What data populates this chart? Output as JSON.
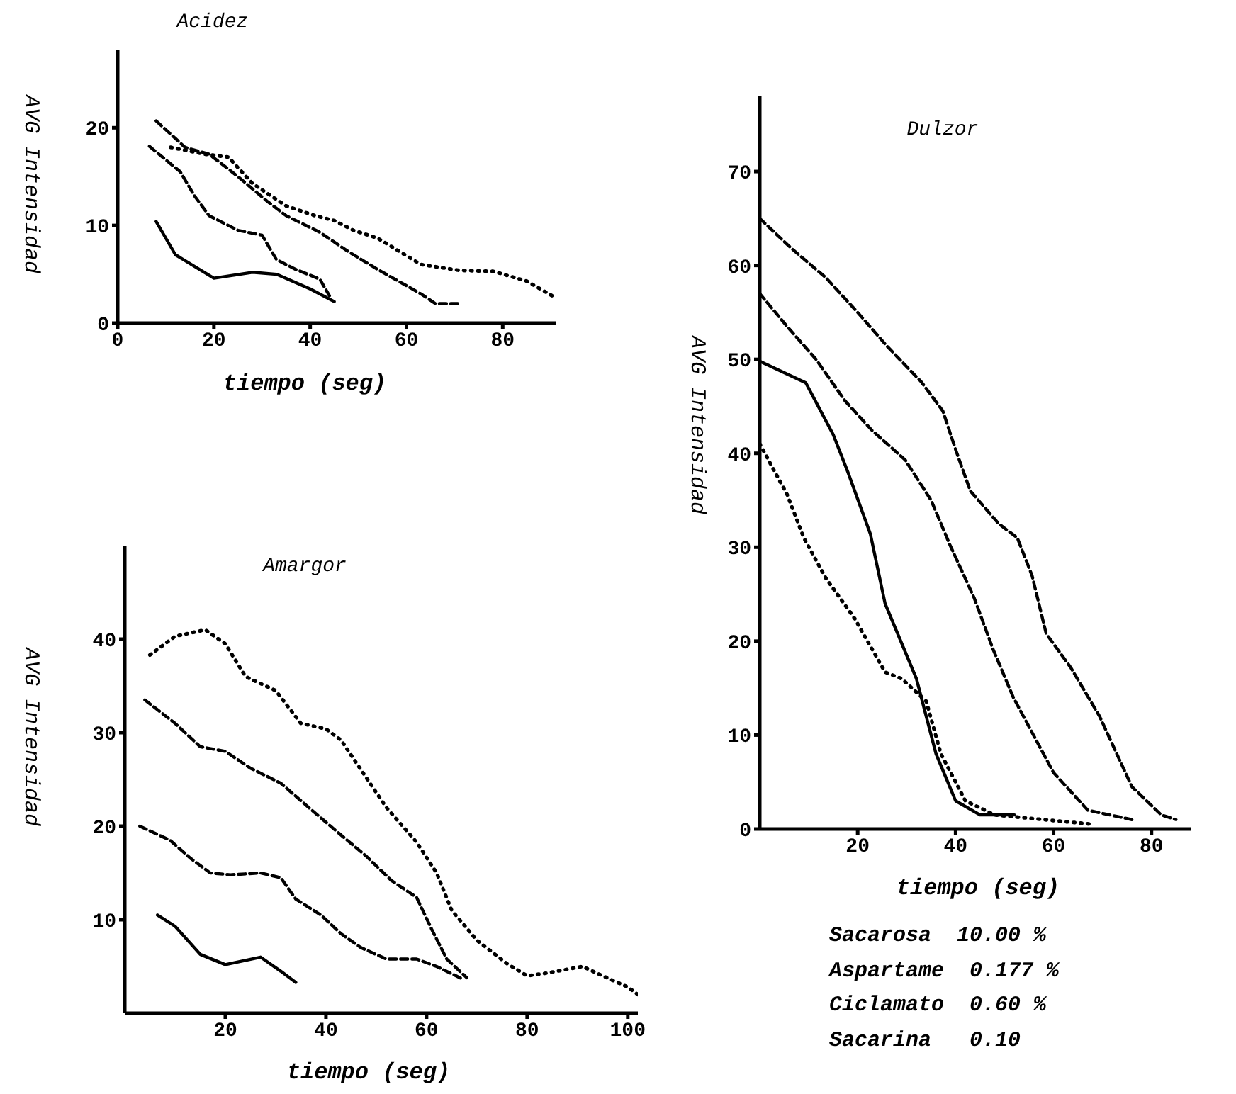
{
  "chart_data": [
    {
      "type": "line",
      "title": "Acidez",
      "xlabel": "tiempo (seg)",
      "ylabel": "AVG Intensidad",
      "xlim": [
        0,
        91
      ],
      "xticks": [
        0,
        20,
        40,
        60,
        80
      ],
      "ylim": [
        0,
        28
      ],
      "yticks": [
        0,
        10,
        20
      ],
      "marker": "none",
      "grid": false,
      "legend": false,
      "series": [
        {
          "color": "#000000",
          "line_style": "solid",
          "x": [
            8,
            12,
            20,
            28,
            33,
            40,
            45
          ],
          "values": [
            10.4,
            7.0,
            4.6,
            5.2,
            5.0,
            3.5,
            2.2
          ]
        },
        {
          "color": "#000000",
          "line_style": "dashed",
          "x": [
            6.6,
            13,
            16,
            19,
            25,
            30,
            33,
            37,
            42,
            44
          ],
          "values": [
            18.1,
            15.5,
            13,
            11,
            9.5,
            9,
            6.5,
            5.5,
            4.5,
            2.8
          ]
        },
        {
          "color": "#000000",
          "line_style": "dashed",
          "x": [
            8,
            14,
            19,
            25,
            31,
            35,
            42,
            48,
            54,
            63,
            66,
            71
          ],
          "values": [
            20.7,
            18,
            17.3,
            15,
            12.5,
            11,
            9.3,
            7.3,
            5.5,
            3,
            2,
            2
          ]
        },
        {
          "color": "#000000",
          "line_style": "dotted",
          "x": [
            11,
            18,
            23,
            28,
            35,
            41,
            45,
            49,
            54,
            63,
            71,
            78,
            85,
            91
          ],
          "values": [
            18,
            17.3,
            17,
            14.3,
            12,
            11,
            10.5,
            9.5,
            8.7,
            6,
            5.4,
            5.3,
            4.3,
            2.6
          ]
        }
      ]
    },
    {
      "type": "line",
      "title": "Amargor",
      "xlabel": "tiempo (seg)",
      "ylabel": "AVG Intensidad",
      "xlim": [
        0,
        102
      ],
      "xticks": [
        20,
        40,
        60,
        80,
        100
      ],
      "ylim": [
        0,
        50
      ],
      "yticks": [
        10,
        20,
        30,
        40
      ],
      "marker": "none",
      "grid": false,
      "legend": false,
      "series": [
        {
          "color": "#000000",
          "line_style": "solid",
          "x": [
            6.5,
            10,
            15,
            20,
            27,
            31,
            34
          ],
          "values": [
            10.5,
            9.3,
            6.3,
            5.2,
            6,
            4.5,
            3.3
          ]
        },
        {
          "color": "#000000",
          "line_style": "dashed",
          "x": [
            3,
            9,
            13,
            17,
            21,
            27,
            31,
            34,
            39,
            43,
            47,
            52,
            58,
            62,
            67
          ],
          "values": [
            20,
            18.5,
            16.6,
            15,
            14.8,
            15,
            14.5,
            12.2,
            10.5,
            8.5,
            7,
            5.8,
            5.8,
            5,
            3.7
          ]
        },
        {
          "color": "#000000",
          "line_style": "dashed",
          "x": [
            4,
            10,
            15,
            20,
            25,
            31,
            37,
            42,
            48,
            53,
            58,
            61,
            64,
            68
          ],
          "values": [
            33.5,
            31,
            28.5,
            28,
            26.2,
            24.6,
            21.8,
            19.5,
            16.8,
            14.2,
            12.4,
            9,
            5.8,
            3.8
          ]
        },
        {
          "color": "#000000",
          "line_style": "dotted",
          "x": [
            5,
            10,
            16,
            20,
            24,
            30,
            35,
            40,
            43,
            47,
            52,
            58,
            62,
            65,
            70,
            76,
            80,
            84,
            91,
            95,
            100,
            102
          ],
          "values": [
            38.3,
            40.3,
            41,
            39.5,
            36,
            34.5,
            31,
            30.4,
            29.2,
            26,
            22,
            18.3,
            15,
            11,
            7.8,
            5.3,
            4,
            4.3,
            5,
            4,
            2.8,
            2
          ]
        }
      ]
    },
    {
      "type": "line",
      "title": "Dulzor",
      "xlabel": "tiempo (seg)",
      "ylabel": "AVG Intensidad",
      "xlim": [
        0,
        88
      ],
      "xticks": [
        20,
        40,
        60,
        80
      ],
      "ylim": [
        0,
        78
      ],
      "yticks": [
        0,
        10,
        20,
        30,
        40,
        50,
        60,
        70
      ],
      "marker": "none",
      "grid": false,
      "legend": false,
      "series": [
        {
          "color": "#000000",
          "line_style": "solid",
          "x": [
            0,
            9.4,
            15,
            18,
            22.6,
            25.6,
            32,
            36,
            40,
            45,
            52
          ],
          "values": [
            49.8,
            47.5,
            42,
            38,
            31.4,
            24,
            16,
            8,
            3,
            1.5,
            1.5
          ]
        },
        {
          "color": "#000000",
          "line_style": "dashed",
          "x": [
            0,
            6.5,
            13.5,
            20,
            26,
            33,
            37.4,
            40,
            43,
            48.8,
            52.6,
            55.6,
            58.5,
            63.5,
            69.4,
            76,
            82,
            85
          ],
          "values": [
            65,
            61.8,
            58.7,
            55,
            51.4,
            47.6,
            44.5,
            40.4,
            36,
            32.5,
            31,
            27,
            20.8,
            17.2,
            12,
            4.5,
            1.5,
            1
          ]
        },
        {
          "color": "#000000",
          "line_style": "dashed",
          "x": [
            0,
            5.6,
            11.5,
            17.4,
            23,
            29.7,
            35,
            38.8,
            43.8,
            47.6,
            51.8,
            60,
            67,
            76
          ],
          "values": [
            57,
            53.5,
            50,
            45.6,
            42.4,
            39.3,
            35,
            30.3,
            24.6,
            19.2,
            14,
            6,
            2,
            1
          ]
        },
        {
          "color": "#000000",
          "line_style": "dotted",
          "x": [
            0,
            5.6,
            9,
            13.5,
            19.4,
            25.6,
            29,
            34,
            37,
            42,
            48,
            58,
            68
          ],
          "values": [
            41,
            35.6,
            31,
            26.7,
            22.4,
            16.7,
            16,
            13.6,
            8,
            3,
            1.5,
            1,
            0.5
          ]
        }
      ]
    },
    {
      "type": "other",
      "annotations": [
        "Sacarosa  10.00 %",
        "Aspartame  0.177 %",
        "Ciclamato  0.60 %",
        "Sacarina   0.10"
      ]
    }
  ]
}
